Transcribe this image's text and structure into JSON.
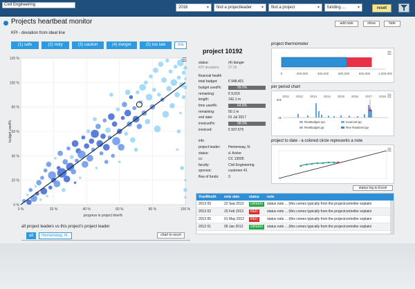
{
  "topbar": {
    "department": "Civil Engineering",
    "year": "2016",
    "projectleader_placeholder": "find a projectleader",
    "project_placeholder": "find a project",
    "funding_placeholder": "funding ...",
    "reset_label": "reset"
  },
  "header": {
    "title": "Projects heartbeat monitor",
    "add_note": "add note",
    "show": "show",
    "hide": "hide"
  },
  "kpi": {
    "title": "KPI - deviation from ideal line",
    "buttons": [
      "(1) safe",
      "(2) risky",
      "(3) caution",
      "(4) danger",
      "(5) too late",
      "n/a"
    ]
  },
  "scatter_chart": {
    "type": "scatter",
    "xlabel": "progress in project time%",
    "ylabel": "budget used%",
    "x_ticks": [
      "0 %",
      "20 %",
      "40 %",
      "60 %",
      "80 %",
      "100 %"
    ],
    "y_ticks": [
      "0 %",
      "20 %",
      "40 %",
      "60 %",
      "80 %",
      "100 %",
      "120 %"
    ],
    "xlim": [
      0,
      100
    ],
    "ylim": [
      0,
      120
    ],
    "colors": {
      "dark": "#2f5fd0",
      "mid": "#5b8fe6",
      "light": "#8fd2f7",
      "trend": "#1b2a3c"
    },
    "points": [
      [
        2,
        3,
        3,
        1
      ],
      [
        4,
        8,
        2,
        2
      ],
      [
        5,
        2,
        4,
        0
      ],
      [
        6,
        12,
        3,
        1
      ],
      [
        8,
        5,
        5,
        1
      ],
      [
        9,
        15,
        2,
        2
      ],
      [
        10,
        9,
        3,
        0
      ],
      [
        11,
        18,
        4,
        1
      ],
      [
        12,
        4,
        2,
        2
      ],
      [
        13,
        22,
        3,
        1
      ],
      [
        14,
        11,
        5,
        0
      ],
      [
        15,
        28,
        3,
        1
      ],
      [
        16,
        7,
        2,
        2
      ],
      [
        17,
        33,
        4,
        1
      ],
      [
        18,
        14,
        3,
        0
      ],
      [
        19,
        24,
        6,
        1
      ],
      [
        20,
        20,
        4,
        0
      ],
      [
        21,
        38,
        2,
        2
      ],
      [
        22,
        17,
        5,
        1
      ],
      [
        23,
        30,
        3,
        0
      ],
      [
        24,
        42,
        4,
        1
      ],
      [
        25,
        26,
        7,
        0
      ],
      [
        26,
        12,
        3,
        2
      ],
      [
        27,
        35,
        4,
        1
      ],
      [
        28,
        21,
        5,
        0
      ],
      [
        29,
        46,
        3,
        1
      ],
      [
        30,
        31,
        6,
        0
      ],
      [
        31,
        39,
        3,
        2
      ],
      [
        32,
        27,
        4,
        1
      ],
      [
        33,
        50,
        5,
        0
      ],
      [
        34,
        36,
        3,
        1
      ],
      [
        35,
        44,
        4,
        0
      ],
      [
        36,
        22,
        2,
        2
      ],
      [
        37,
        41,
        6,
        1
      ],
      [
        38,
        55,
        3,
        0
      ],
      [
        39,
        33,
        5,
        1
      ],
      [
        40,
        48,
        4,
        0
      ],
      [
        41,
        60,
        3,
        2
      ],
      [
        42,
        38,
        5,
        1
      ],
      [
        43,
        52,
        4,
        0
      ],
      [
        44,
        45,
        3,
        1
      ],
      [
        45,
        58,
        6,
        0
      ],
      [
        46,
        30,
        2,
        2
      ],
      [
        47,
        64,
        4,
        1
      ],
      [
        48,
        50,
        5,
        0
      ],
      [
        49,
        42,
        3,
        1
      ],
      [
        50,
        56,
        4,
        0
      ],
      [
        51,
        69,
        3,
        1
      ],
      [
        52,
        47,
        5,
        0
      ],
      [
        53,
        61,
        4,
        2
      ],
      [
        54,
        55,
        3,
        1
      ],
      [
        55,
        72,
        5,
        0
      ],
      [
        56,
        40,
        3,
        1
      ],
      [
        57,
        66,
        4,
        0
      ],
      [
        58,
        52,
        6,
        1
      ],
      [
        59,
        78,
        3,
        2
      ],
      [
        60,
        60,
        4,
        0
      ],
      [
        61,
        47,
        5,
        1
      ],
      [
        62,
        71,
        3,
        0
      ],
      [
        63,
        82,
        4,
        1
      ],
      [
        64,
        58,
        3,
        2
      ],
      [
        65,
        75,
        5,
        0
      ],
      [
        66,
        66,
        4,
        1
      ],
      [
        67,
        88,
        3,
        0
      ],
      [
        68,
        53,
        4,
        2
      ],
      [
        69,
        79,
        3,
        1
      ],
      [
        70,
        70,
        5,
        0
      ],
      [
        71,
        92,
        3,
        2
      ],
      [
        72,
        64,
        4,
        1
      ],
      [
        73,
        84,
        3,
        2
      ],
      [
        74,
        96,
        5,
        2
      ],
      [
        75,
        75,
        4,
        1
      ],
      [
        76,
        100,
        3,
        2
      ],
      [
        77,
        68,
        4,
        2
      ],
      [
        78,
        88,
        5,
        2
      ],
      [
        79,
        105,
        3,
        2
      ],
      [
        80,
        80,
        4,
        1
      ],
      [
        81,
        94,
        3,
        2
      ],
      [
        82,
        110,
        4,
        2
      ],
      [
        83,
        62,
        5,
        2
      ],
      [
        84,
        90,
        3,
        2
      ],
      [
        85,
        115,
        4,
        2
      ],
      [
        86,
        86,
        3,
        1
      ],
      [
        87,
        102,
        4,
        2
      ],
      [
        88,
        74,
        5,
        2
      ],
      [
        89,
        118,
        3,
        2
      ],
      [
        90,
        95,
        4,
        2
      ],
      [
        91,
        109,
        3,
        2
      ],
      [
        92,
        81,
        4,
        2
      ],
      [
        93,
        100,
        5,
        2
      ],
      [
        94,
        113,
        3,
        2
      ],
      [
        95,
        90,
        4,
        2
      ],
      [
        96,
        104,
        3,
        2
      ],
      [
        97,
        116,
        5,
        2
      ],
      [
        98,
        98,
        4,
        2
      ],
      [
        99,
        108,
        3,
        2
      ],
      [
        100,
        96,
        3,
        2
      ],
      [
        100,
        103,
        2,
        2
      ],
      [
        99,
        88,
        3,
        2
      ],
      [
        97,
        75,
        2,
        2
      ],
      [
        96,
        60,
        3,
        2
      ],
      [
        95,
        45,
        2,
        2
      ],
      [
        98,
        30,
        3,
        2
      ],
      [
        100,
        20,
        2,
        2
      ],
      [
        100,
        12,
        3,
        2
      ],
      [
        100,
        6,
        2,
        2
      ],
      [
        98,
        118,
        3,
        2
      ],
      [
        100,
        112,
        3,
        2
      ],
      [
        45,
        70,
        3,
        2
      ],
      [
        65,
        92,
        4,
        2
      ],
      [
        52,
        35,
        3,
        1
      ],
      [
        33,
        18,
        2,
        0
      ],
      [
        70,
        45,
        3,
        2
      ],
      [
        55,
        90,
        3,
        2
      ],
      [
        60,
        35,
        2,
        2
      ]
    ]
  },
  "leaders": {
    "title": "all project leaders vs this project's project leader",
    "all_label": "all",
    "leader": "Hemenway, N.",
    "chart_to_excel": "chart to excel"
  },
  "project": {
    "title": "project 10192",
    "status_k": "status:",
    "status_v": "(4) danger",
    "kpidev_k": "KPI deviation:",
    "kpidev_v": "37.05",
    "financial_title": "financial health",
    "total_budget_k": "total budget:",
    "total_budget_v": "€ 948,401",
    "budget_used_k": "budget used%:",
    "budget_used_v": "99.0%",
    "remaining1_k": "remaining:",
    "remaining1_v": "€ 9,019",
    "length_k": "length:",
    "length_v": "142.1 m",
    "time_used_k": "time used%:",
    "time_used_v": "64.8%",
    "remaining2_k": "remaining:",
    "remaining2_v": "50.1 m",
    "end_date_k": "end date:",
    "end_date_v": "01 Jul 2017",
    "invoiced_pct_k": "invoiced%:",
    "invoiced_pct_v": "98.9%",
    "invoiced_k": "invoiced:",
    "invoiced_v": "€ 937,575",
    "info_title": "info",
    "pl_k": "project leader:",
    "pl_v": "Hemenway, N.",
    "pstatus_k": "status:",
    "pstatus_v": "d. Active",
    "cc_k": "cc:",
    "cc_v": "CC 13005",
    "faculty_k": "faculty:",
    "faculty_v": "Civil Engineering",
    "sponsor_k": "sponsor:",
    "sponsor_v": "customer 41",
    "funds_k": "flow of funds:",
    "funds_v": "3"
  },
  "thermometer": {
    "title": "project thermometer",
    "ticks": [
      "0",
      "200,000",
      "400,000",
      "600,000",
      "800,000",
      "1,000,000"
    ],
    "max": 1000000,
    "used": 630000,
    "overrun": 870000,
    "colors": {
      "used": "#2e8fd6",
      "rest": "#e63146"
    }
  },
  "period_chart": {
    "title": "per period chart",
    "x_ticks": [
      "2011",
      "2012",
      "2013",
      "2014",
      "2015",
      "2016",
      "2017",
      "2018"
    ],
    "y_ticks": [
      "0k",
      "50k"
    ],
    "bars": [
      [
        2011.9,
        10
      ],
      [
        2012.6,
        6
      ],
      [
        2013.2,
        40
      ],
      [
        2013.4,
        18
      ],
      [
        2013.6,
        8
      ],
      [
        2014.1,
        5
      ],
      [
        2014.5,
        4
      ],
      [
        2015.0,
        6
      ],
      [
        2015.6,
        5
      ],
      [
        2016.2,
        4
      ],
      [
        2016.7,
        9
      ],
      [
        2017.0,
        35
      ],
      [
        2017.1,
        28
      ],
      [
        2017.2,
        22
      ]
    ],
    "legend": [
      "RevBudget rpn",
      "invoiced pp",
      "RevBudget pp",
      "Rev Realized pp"
    ]
  },
  "ptd_chart": {
    "title": "project to date - a colored circle represents a note"
  },
  "notes": {
    "status_log": "status log to Excel",
    "cols": [
      "YearMonth",
      "note date",
      "status",
      "note"
    ],
    "rows": [
      {
        "ym": "2013 09",
        "date": "22 Sep 2013",
        "status": "GREEN",
        "note": "status note ... (this comes typically from the projectcontroller explaini"
      },
      {
        "ym": "2013 02",
        "date": "15 Feb 2013",
        "status": "RED",
        "note": "status note ... (this comes typically from the projectcontroller explaini"
      },
      {
        "ym": "2012 05",
        "date": "01 May 2012",
        "status": "RED",
        "note": "status note ... (this comes typically from the projectcontroller explaini"
      },
      {
        "ym": "2012 01",
        "date": "09 Jan 2012",
        "status": "GREEN",
        "note": "status note ... (this comes typically from the projectcontroller explaini"
      }
    ]
  }
}
